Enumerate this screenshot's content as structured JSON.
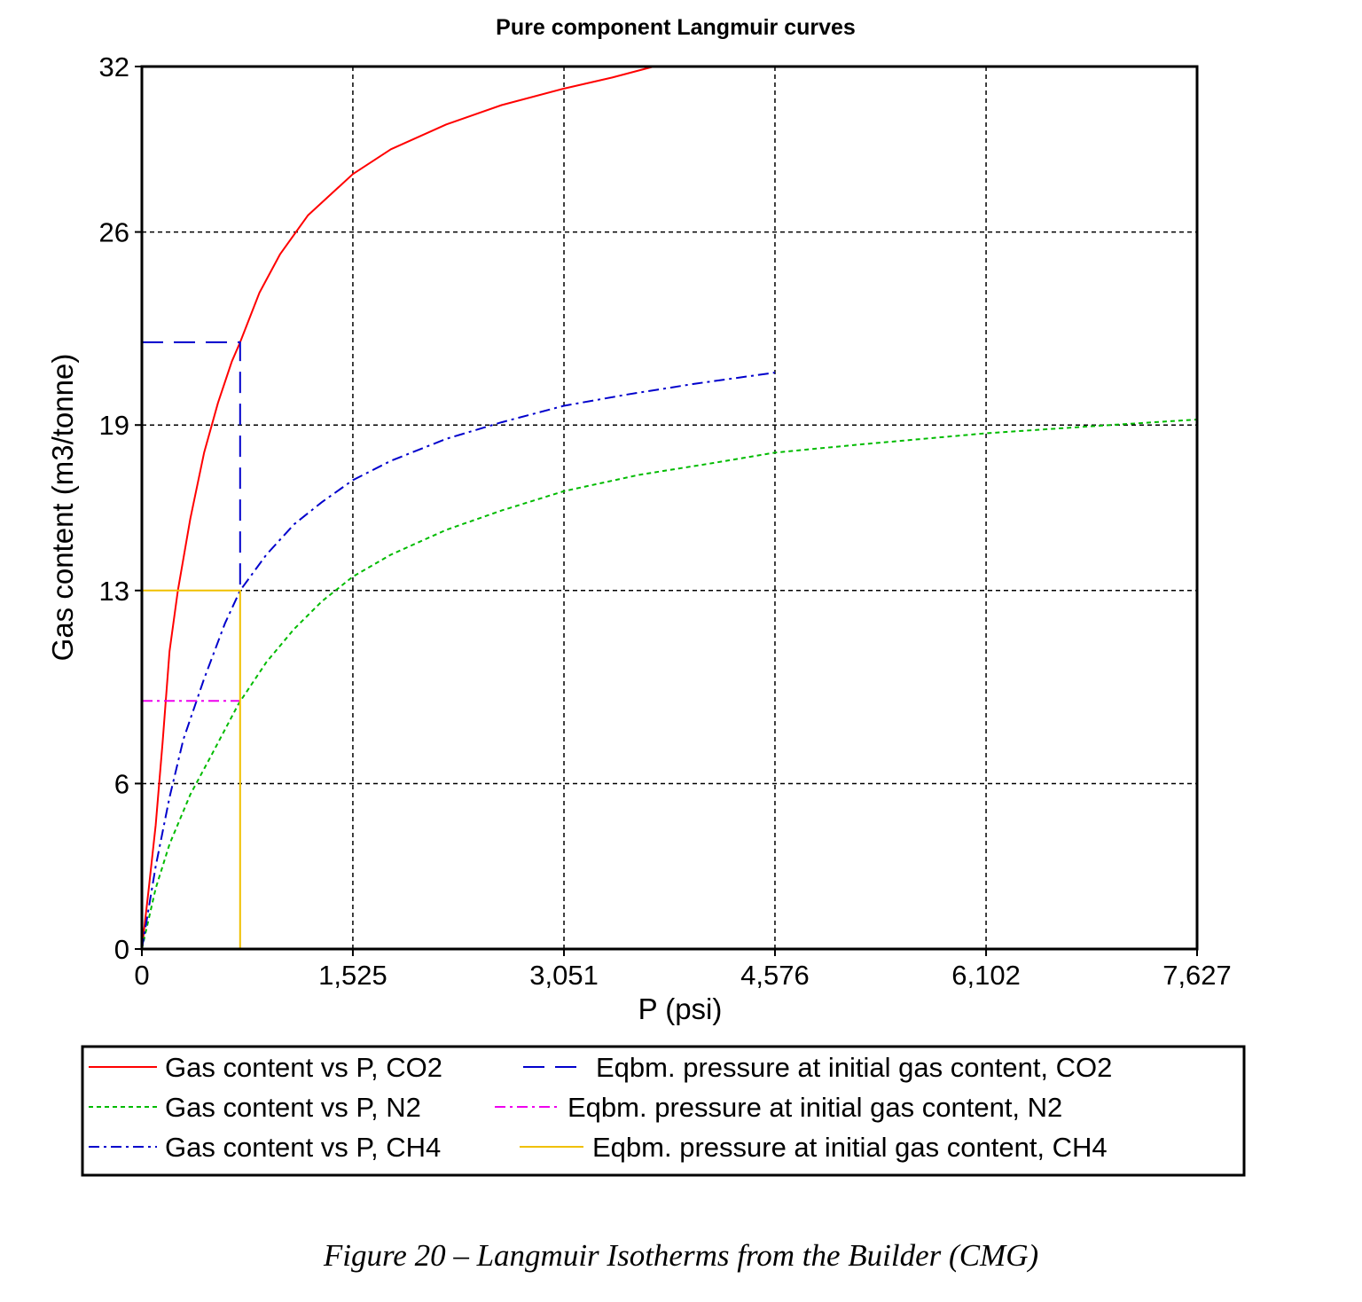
{
  "chart_data": {
    "type": "line",
    "title": "Pure component Langmuir curves",
    "xlabel": "P (psi)",
    "ylabel": "Gas content (m3/tonne)",
    "xlim": [
      0,
      7627
    ],
    "ylim": [
      0,
      32
    ],
    "x_ticks": [
      0,
      1525,
      3051,
      4576,
      6102,
      7627
    ],
    "x_tick_labels": [
      "0",
      "1,525",
      "3,051",
      "4,576",
      "6,102",
      "7,627"
    ],
    "y_ticks": [
      0,
      6,
      13,
      19,
      26,
      32
    ],
    "y_tick_labels": [
      "0",
      "6",
      "13",
      "19",
      "26",
      "32"
    ],
    "grid": true,
    "series": [
      {
        "name": "Gas content vs P, CO2",
        "color": "#ff0000",
        "style": "solid",
        "points": [
          [
            0,
            0
          ],
          [
            50,
            2.2
          ],
          [
            100,
            4.5
          ],
          [
            150,
            7.5
          ],
          [
            200,
            10.8
          ],
          [
            260,
            13.0
          ],
          [
            350,
            15.6
          ],
          [
            450,
            18.0
          ],
          [
            550,
            19.8
          ],
          [
            650,
            21.3
          ],
          [
            710,
            22.0
          ],
          [
            850,
            23.8
          ],
          [
            1000,
            25.2
          ],
          [
            1200,
            26.6
          ],
          [
            1525,
            28.1
          ],
          [
            1800,
            29.0
          ],
          [
            2200,
            29.9
          ],
          [
            2600,
            30.6
          ],
          [
            3051,
            31.2
          ],
          [
            3400,
            31.6
          ],
          [
            3700,
            32.0
          ]
        ]
      },
      {
        "name": "Gas content vs P, N2",
        "color": "#00bb00",
        "style": "dotted",
        "points": [
          [
            0,
            0
          ],
          [
            100,
            2.2
          ],
          [
            200,
            3.8
          ],
          [
            350,
            5.6
          ],
          [
            500,
            7.0
          ],
          [
            700,
            8.9
          ],
          [
            900,
            10.4
          ],
          [
            1100,
            11.6
          ],
          [
            1300,
            12.6
          ],
          [
            1525,
            13.5
          ],
          [
            1800,
            14.3
          ],
          [
            2200,
            15.2
          ],
          [
            2600,
            15.9
          ],
          [
            3051,
            16.6
          ],
          [
            3600,
            17.2
          ],
          [
            4100,
            17.6
          ],
          [
            4576,
            18.0
          ],
          [
            5200,
            18.3
          ],
          [
            6102,
            18.7
          ],
          [
            7000,
            19.0
          ],
          [
            7627,
            19.2
          ]
        ]
      },
      {
        "name": "Gas content vs P, CH4",
        "color": "#0000cc",
        "style": "dashdot",
        "points": [
          [
            0,
            0
          ],
          [
            50,
            1.5
          ],
          [
            100,
            3.0
          ],
          [
            200,
            5.5
          ],
          [
            300,
            7.6
          ],
          [
            450,
            9.8
          ],
          [
            600,
            11.8
          ],
          [
            710,
            13.0
          ],
          [
            900,
            14.3
          ],
          [
            1100,
            15.4
          ],
          [
            1300,
            16.2
          ],
          [
            1525,
            17.0
          ],
          [
            1800,
            17.7
          ],
          [
            2200,
            18.5
          ],
          [
            2600,
            19.1
          ],
          [
            3051,
            19.7
          ],
          [
            3500,
            20.1
          ],
          [
            4000,
            20.5
          ],
          [
            4576,
            20.9
          ]
        ]
      },
      {
        "name": "Eqbm. pressure at initial gas content, CO2",
        "color": "#0000cc",
        "style": "dashed",
        "points": [
          [
            0,
            22.0
          ],
          [
            710,
            22.0
          ],
          [
            710,
            13.0
          ]
        ]
      },
      {
        "name": "Eqbm. pressure at initial gas content, N2",
        "color": "#ee00ee",
        "style": "dashdot",
        "points": [
          [
            0,
            9.0
          ],
          [
            710,
            9.0
          ]
        ]
      },
      {
        "name": "Eqbm. pressure at initial gas content, CH4",
        "color": "#f0c000",
        "style": "solid",
        "points": [
          [
            0,
            13.0
          ],
          [
            710,
            13.0
          ],
          [
            710,
            0
          ]
        ]
      }
    ],
    "legend_position": "bottom"
  },
  "caption": "Figure 20 – Langmuir Isotherms from the Builder (CMG)"
}
